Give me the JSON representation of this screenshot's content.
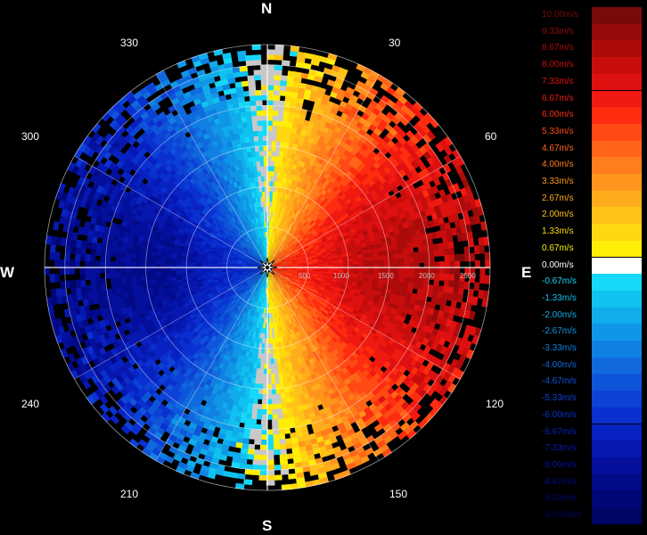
{
  "chart_data": {
    "type": "polar-radar",
    "unit": "m/s",
    "cardinals": {
      "north": "N",
      "east": "E",
      "south": "S",
      "west": "W"
    },
    "bearing_labels": [
      "30",
      "60",
      "120",
      "150",
      "210",
      "240",
      "300",
      "330"
    ],
    "range_labels": [
      "500",
      "1000",
      "1500",
      "2000",
      "2500"
    ],
    "max_range": 2750,
    "field": "radial velocity: positive (red) toward east half, negative (blue) toward west half",
    "legend": [
      {
        "label": "10.00m/s",
        "color": "#7a0a0a"
      },
      {
        "label": "9.33m/s",
        "color": "#960a0a"
      },
      {
        "label": "8.67m/s",
        "color": "#ad0b0b"
      },
      {
        "label": "8.00m/s",
        "color": "#c80d0d"
      },
      {
        "label": "7.33m/s",
        "color": "#df1010"
      },
      {
        "label": "6.67m/s",
        "color": "#f01a10"
      },
      {
        "label": "6.00m/s",
        "color": "#ff2c10"
      },
      {
        "label": "5.33m/s",
        "color": "#ff4a14"
      },
      {
        "label": "4.67m/s",
        "color": "#ff6418"
      },
      {
        "label": "4.00m/s",
        "color": "#ff7d1a"
      },
      {
        "label": "3.33m/s",
        "color": "#ff951c"
      },
      {
        "label": "2.67m/s",
        "color": "#ffac1c"
      },
      {
        "label": "2.00m/s",
        "color": "#ffc218"
      },
      {
        "label": "1.33m/s",
        "color": "#ffd810"
      },
      {
        "label": "0.67m/s",
        "color": "#ffee08"
      },
      {
        "label": "0.00m/s",
        "color": "#ffffff"
      },
      {
        "label": "-0.67m/s",
        "color": "#18d8f8"
      },
      {
        "label": "-1.33m/s",
        "color": "#10c2f0"
      },
      {
        "label": "-2.00m/s",
        "color": "#10aceb"
      },
      {
        "label": "-2.67m/s",
        "color": "#1096e6"
      },
      {
        "label": "-3.33m/s",
        "color": "#1080e2"
      },
      {
        "label": "-4.00m/s",
        "color": "#106ade"
      },
      {
        "label": "-4.67m/s",
        "color": "#0f55da"
      },
      {
        "label": "-5.33m/s",
        "color": "#0c42d6"
      },
      {
        "label": "-6.00m/s",
        "color": "#0a30d0"
      },
      {
        "label": "-6.67m/s",
        "color": "#0822c2"
      },
      {
        "label": "-7.33m/s",
        "color": "#0618b0"
      },
      {
        "label": "-8.00m/s",
        "color": "#04109c"
      },
      {
        "label": "-8.67m/s",
        "color": "#020a88"
      },
      {
        "label": "-9.33m/s",
        "color": "#010676"
      },
      {
        "label": "-10.00m/s",
        "color": "#000464"
      }
    ]
  }
}
